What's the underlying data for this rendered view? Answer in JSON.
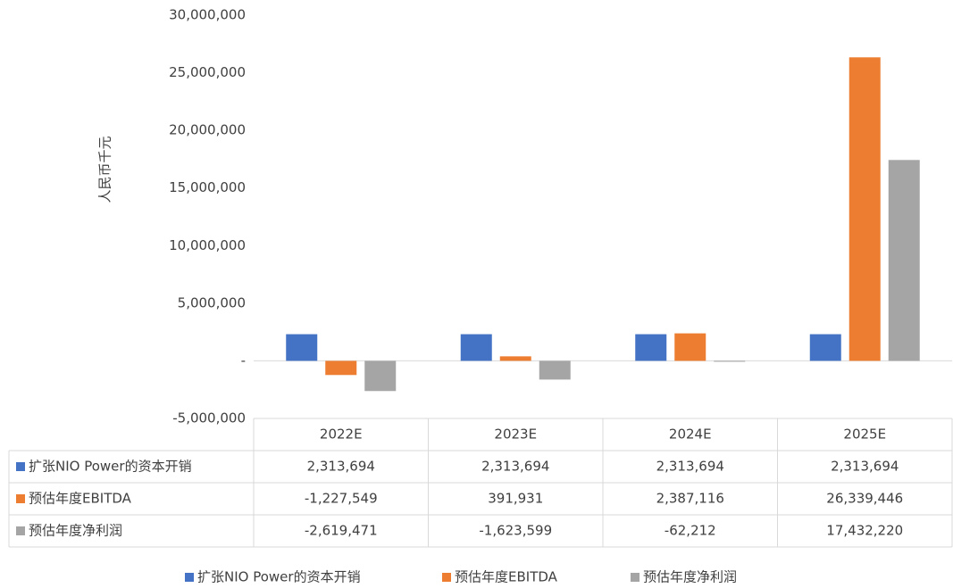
{
  "chart_data": {
    "type": "bar",
    "y_axis_label": "人民币千元",
    "categories": [
      "2022E",
      "2023E",
      "2024E",
      "2025E"
    ],
    "series": [
      {
        "name": "扩张NIO Power的资本开销",
        "color": "#4472c4",
        "values": [
          2313694,
          2313694,
          2313694,
          2313694
        ],
        "value_labels": [
          "2,313,694",
          "2,313,694",
          "2,313,694",
          "2,313,694"
        ]
      },
      {
        "name": "预估年度EBITDA",
        "color": "#ed7d31",
        "values": [
          -1227549,
          391931,
          2387116,
          26339446
        ],
        "value_labels": [
          "-1,227,549",
          "391,931",
          "2,387,116",
          "26,339,446"
        ]
      },
      {
        "name": "预估年度净利润",
        "color": "#a5a5a5",
        "values": [
          -2619471,
          -1623599,
          -62212,
          17432220
        ],
        "value_labels": [
          "-2,619,471",
          "-1,623,599",
          "-62,212",
          "17,432,220"
        ]
      }
    ],
    "ylim": [
      -5000000,
      30000000
    ],
    "yticks": [
      {
        "value": -5000000,
        "label": "-5,000,000"
      },
      {
        "value": 0,
        "label": "-"
      },
      {
        "value": 5000000,
        "label": "5,000,000"
      },
      {
        "value": 10000000,
        "label": "10,000,000"
      },
      {
        "value": 15000000,
        "label": "15,000,000"
      },
      {
        "value": 20000000,
        "label": "20,000,000"
      },
      {
        "value": 25000000,
        "label": "25,000,000"
      },
      {
        "value": 30000000,
        "label": "30,000,000"
      }
    ],
    "grid": false,
    "data_table": true,
    "legend": "bottom"
  }
}
